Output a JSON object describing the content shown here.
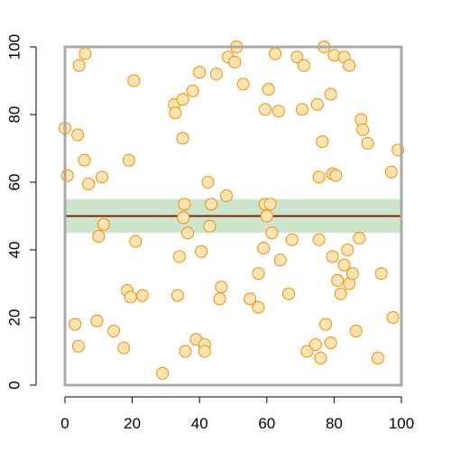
{
  "chart_data": {
    "type": "scatter",
    "title": "",
    "xlabel": "",
    "ylabel": "",
    "xlim": [
      0,
      100
    ],
    "ylim": [
      0,
      100
    ],
    "x_ticks": [
      0,
      20,
      40,
      60,
      80,
      100
    ],
    "y_ticks": [
      0,
      20,
      40,
      60,
      80,
      100
    ],
    "x_tick_labels": [
      "0",
      "20",
      "40",
      "60",
      "80",
      "100"
    ],
    "y_tick_labels": [
      "0",
      "20",
      "40",
      "60",
      "80",
      "100"
    ],
    "grid": false,
    "legend": "none",
    "colors": {
      "point_fill": "#FFE4B5",
      "point_stroke": "#F28C00",
      "band": "#CCE5CC",
      "line": "#8B1A00",
      "box": "#A9A9A9"
    },
    "band": {
      "y_low": 45,
      "y_high": 55
    },
    "hline": {
      "y": 50
    },
    "points": [
      [
        0,
        76
      ],
      [
        0.7,
        62
      ],
      [
        3,
        18
      ],
      [
        3.8,
        74
      ],
      [
        4,
        11.5
      ],
      [
        4.2,
        94.5
      ],
      [
        6,
        98
      ],
      [
        5.8,
        66.5
      ],
      [
        7,
        59.5
      ],
      [
        9.5,
        19
      ],
      [
        10,
        44
      ],
      [
        11,
        61.5
      ],
      [
        11.5,
        47.5
      ],
      [
        14.5,
        16
      ],
      [
        17.5,
        11
      ],
      [
        18.5,
        28
      ],
      [
        19,
        66.5
      ],
      [
        19.5,
        26
      ],
      [
        20.5,
        90
      ],
      [
        21,
        42.5
      ],
      [
        23,
        26.5
      ],
      [
        29,
        3.5
      ],
      [
        32.5,
        83
      ],
      [
        32.8,
        80.5
      ],
      [
        33.5,
        26.5
      ],
      [
        34,
        38
      ],
      [
        35,
        84.5
      ],
      [
        35,
        73
      ],
      [
        35.2,
        49.5
      ],
      [
        35.5,
        53.5
      ],
      [
        35.8,
        10
      ],
      [
        36.5,
        45
      ],
      [
        38,
        87
      ],
      [
        39,
        13.5
      ],
      [
        40,
        92.5
      ],
      [
        40.5,
        39.5
      ],
      [
        41.5,
        12
      ],
      [
        41.5,
        10
      ],
      [
        42.5,
        60
      ],
      [
        43,
        47
      ],
      [
        43.5,
        53.5
      ],
      [
        45,
        92
      ],
      [
        46,
        25.5
      ],
      [
        46.5,
        29
      ],
      [
        48,
        56
      ],
      [
        48.5,
        97
      ],
      [
        50.5,
        95.5
      ],
      [
        51,
        100
      ],
      [
        53,
        89
      ],
      [
        55,
        25.5
      ],
      [
        57.5,
        23
      ],
      [
        57.5,
        33
      ],
      [
        59,
        40.5
      ],
      [
        59.5,
        81.5
      ],
      [
        59.5,
        53.5
      ],
      [
        60,
        50
      ],
      [
        60.5,
        87.5
      ],
      [
        61,
        53.5
      ],
      [
        61.5,
        45
      ],
      [
        62.5,
        98
      ],
      [
        63.5,
        81
      ],
      [
        64,
        37
      ],
      [
        66.5,
        27
      ],
      [
        67.5,
        43
      ],
      [
        69,
        97
      ],
      [
        71,
        94.5
      ],
      [
        70.5,
        81.5
      ],
      [
        72,
        10
      ],
      [
        74.5,
        12
      ],
      [
        75,
        83
      ],
      [
        75.5,
        61.5
      ],
      [
        75.5,
        43
      ],
      [
        76,
        8
      ],
      [
        76.5,
        72
      ],
      [
        77,
        100
      ],
      [
        77.5,
        18
      ],
      [
        79,
        86
      ],
      [
        79,
        12.5
      ],
      [
        79.5,
        62.5
      ],
      [
        79.5,
        38
      ],
      [
        80,
        97.5
      ],
      [
        80.5,
        62
      ],
      [
        81,
        31
      ],
      [
        82,
        27
      ],
      [
        83,
        97
      ],
      [
        83,
        35.5
      ],
      [
        84,
        40
      ],
      [
        84.5,
        94.5
      ],
      [
        84.5,
        30
      ],
      [
        85.5,
        33
      ],
      [
        86.5,
        16
      ],
      [
        87.5,
        43.5
      ],
      [
        88,
        78.5
      ],
      [
        88.5,
        75.5
      ],
      [
        90,
        71.5
      ],
      [
        93,
        8
      ],
      [
        94,
        33
      ],
      [
        97,
        63
      ],
      [
        97.5,
        20
      ],
      [
        99,
        69.5
      ]
    ]
  }
}
